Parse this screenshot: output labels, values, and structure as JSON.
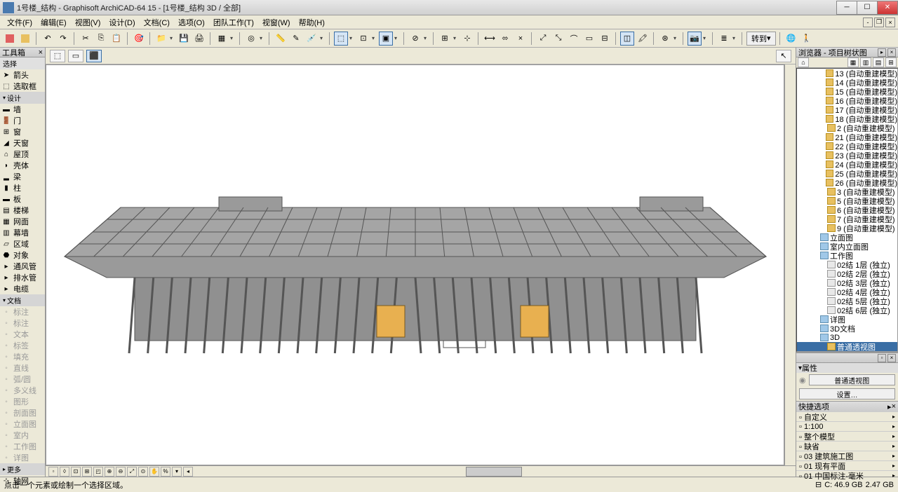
{
  "window": {
    "title": "1号楼_结构 - Graphisoft ArchiCAD-64 15 - [1号楼_结构 3D / 全部]"
  },
  "menubar": {
    "items": [
      "文件(F)",
      "编辑(E)",
      "视图(V)",
      "设计(D)",
      "文档(C)",
      "选项(O)",
      "团队工作(T)",
      "视窗(W)",
      "帮助(H)"
    ]
  },
  "toolbar_goto": "转到",
  "toolbox": {
    "title": "工具箱",
    "sub_select": "选择",
    "arrow_label": "箭头",
    "marquee_label": "选取框",
    "cat_design": "设计",
    "tools_design": [
      "墙",
      "门",
      "窗",
      "天窗",
      "屋顶",
      "壳体",
      "梁",
      "柱",
      "板",
      "楼梯",
      "网面",
      "幕墙",
      "区域",
      "对象"
    ],
    "tools_mep": [
      "通风管",
      "排水管",
      "电缆"
    ],
    "cat_doc": "文档",
    "tools_doc": [
      "标注",
      "标注",
      "文本",
      "标签",
      "填充",
      "直线",
      "弧/圆",
      "多义线",
      "图形",
      "剖面图",
      "立面图",
      "室内",
      "工作图",
      "详图"
    ],
    "cat_more": "更多",
    "spline_label": "轴网"
  },
  "navigator": {
    "title": "浏览器 - 项目树状图",
    "auto_rebuild_items": [
      {
        "id": "13",
        "label": "(自动重建模型)"
      },
      {
        "id": "14",
        "label": "(自动重建模型)"
      },
      {
        "id": "15",
        "label": "(自动重建模型)"
      },
      {
        "id": "16",
        "label": "(自动重建模型)"
      },
      {
        "id": "17",
        "label": "(自动重建模型)"
      },
      {
        "id": "18",
        "label": "(自动重建模型)"
      },
      {
        "id": "2",
        "label": "(自动重建模型)"
      },
      {
        "id": "21",
        "label": "(自动重建模型)"
      },
      {
        "id": "22",
        "label": "(自动重建模型)"
      },
      {
        "id": "23",
        "label": "(自动重建模型)"
      },
      {
        "id": "24",
        "label": "(自动重建模型)"
      },
      {
        "id": "25",
        "label": "(自动重建模型)"
      },
      {
        "id": "26",
        "label": "(自动重建模型)"
      },
      {
        "id": "3",
        "label": "(自动重建模型)"
      },
      {
        "id": "5",
        "label": "(自动重建模型)"
      },
      {
        "id": "6",
        "label": "(自动重建模型)"
      },
      {
        "id": "7",
        "label": "(自动重建模型)"
      },
      {
        "id": "9",
        "label": "(自动重建模型)"
      }
    ],
    "elev_label": "立面图",
    "interior_elev_label": "室内立面图",
    "worksheet_label": "工作图",
    "worksheet_items": [
      "02结  1层  (独立)",
      "02结  2层  (独立)",
      "02结  3层  (独立)",
      "02结  4层  (独立)",
      "02结  5层  (独立)",
      "02结  6层  (独立)"
    ],
    "detail_label": "详图",
    "doc3d_label": "3D文档",
    "view3d_label": "3D",
    "persp_label": "普通透视图"
  },
  "properties": {
    "header": "属性",
    "value": "普通透视图",
    "settings_btn": "设置…"
  },
  "quick_options": {
    "title": "快捷选项",
    "rows": [
      "自定义",
      "1:100",
      "整个模型",
      "缺省",
      "03  建筑施工图",
      "01  现有平面",
      "01  中国标注-毫米"
    ]
  },
  "statusbar": {
    "hint": "点击一个元素或绘制一个选择区域。",
    "disk_c": "C: 46.9 GB",
    "disk_free": "2.47 GB"
  },
  "building": {
    "roof_color": "#9a9a9a",
    "structure_color": "#6b6b6b",
    "light_color": "#e8b050",
    "bg": "#ffffff"
  }
}
